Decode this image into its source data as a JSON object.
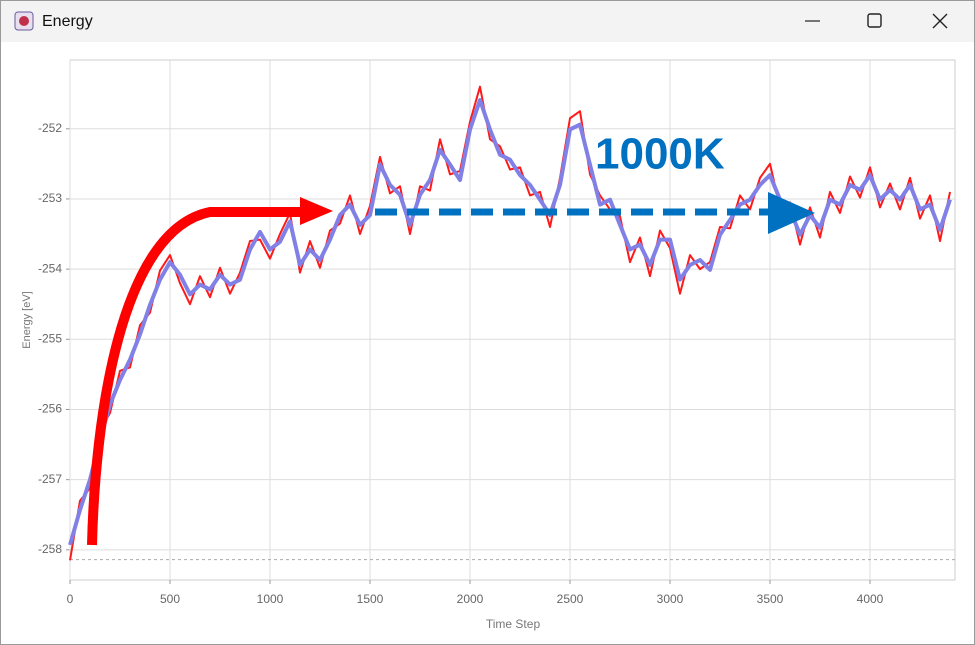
{
  "window": {
    "title": "Energy"
  },
  "chart_data": {
    "type": "line",
    "xlabel": "Time Step",
    "ylabel": "Energy [eV]",
    "annotation": "1000K",
    "x": [
      0,
      50,
      100,
      150,
      200,
      250,
      300,
      350,
      400,
      450,
      500,
      550,
      600,
      650,
      700,
      750,
      800,
      850,
      900,
      950,
      1000,
      1050,
      1100,
      1150,
      1200,
      1250,
      1300,
      1350,
      1400,
      1450,
      1500,
      1550,
      1600,
      1650,
      1700,
      1750,
      1800,
      1850,
      1900,
      1950,
      2000,
      2050,
      2100,
      2150,
      2200,
      2250,
      2300,
      2350,
      2400,
      2450,
      2500,
      2550,
      2600,
      2650,
      2700,
      2750,
      2800,
      2850,
      2900,
      2950,
      3000,
      3050,
      3100,
      3150,
      3200,
      3250,
      3300,
      3350,
      3400,
      3450,
      3500,
      3550,
      3600,
      3650,
      3700,
      3750,
      3800,
      3850,
      3900,
      3950,
      4000,
      4050,
      4100,
      4150,
      4200,
      4250,
      4300,
      4350,
      4400
    ],
    "series": [
      {
        "color": "#ff1a1a",
        "width": 2,
        "values": [
          -258.15,
          -257.3,
          -257.12,
          -256.3,
          -256.05,
          -255.45,
          -255.4,
          -254.8,
          -254.62,
          -254.02,
          -253.8,
          -254.2,
          -254.5,
          -254.1,
          -254.4,
          -253.98,
          -254.35,
          -254.05,
          -253.6,
          -253.58,
          -253.85,
          -253.5,
          -253.2,
          -254.05,
          -253.6,
          -253.98,
          -253.45,
          -253.35,
          -252.95,
          -253.5,
          -253.1,
          -252.4,
          -252.92,
          -252.82,
          -253.5,
          -252.82,
          -252.88,
          -252.15,
          -252.65,
          -252.6,
          -251.9,
          -251.4,
          -252.15,
          -252.25,
          -252.58,
          -252.55,
          -252.95,
          -252.9,
          -253.4,
          -252.7,
          -251.85,
          -251.75,
          -252.65,
          -252.95,
          -253.15,
          -253.25,
          -253.9,
          -253.55,
          -254.1,
          -253.45,
          -253.7,
          -254.35,
          -253.8,
          -254.0,
          -253.9,
          -253.4,
          -253.42,
          -252.95,
          -253.15,
          -252.7,
          -252.5,
          -253.12,
          -253.05,
          -253.65,
          -253.12,
          -253.55,
          -252.9,
          -253.2,
          -252.68,
          -252.98,
          -252.55,
          -253.12,
          -252.78,
          -253.15,
          -252.7,
          -253.28,
          -252.95,
          -253.6,
          -252.9
        ]
      },
      {
        "color": "#8080e6",
        "width": 4,
        "values": [
          -257.93,
          -257.43,
          -257.0,
          -256.43,
          -255.93,
          -255.58,
          -255.29,
          -254.93,
          -254.51,
          -254.15,
          -253.9,
          -254.08,
          -254.36,
          -254.22,
          -254.29,
          -254.08,
          -254.22,
          -254.15,
          -253.72,
          -253.47,
          -253.72,
          -253.61,
          -253.32,
          -253.94,
          -253.72,
          -253.87,
          -253.58,
          -253.23,
          -253.08,
          -253.37,
          -253.23,
          -252.51,
          -252.8,
          -252.94,
          -253.37,
          -252.94,
          -252.73,
          -252.3,
          -252.51,
          -252.73,
          -252.01,
          -251.59,
          -252.01,
          -252.37,
          -252.44,
          -252.66,
          -252.8,
          -253.01,
          -253.23,
          -252.8,
          -252.01,
          -251.94,
          -252.51,
          -253.08,
          -253.01,
          -253.37,
          -253.72,
          -253.65,
          -253.94,
          -253.58,
          -253.58,
          -254.15,
          -253.94,
          -253.87,
          -254.01,
          -253.51,
          -253.3,
          -253.08,
          -253.01,
          -252.8,
          -252.66,
          -253.01,
          -253.15,
          -253.51,
          -253.23,
          -253.41,
          -253.01,
          -253.08,
          -252.8,
          -252.87,
          -252.66,
          -253.01,
          -252.87,
          -253.01,
          -252.8,
          -253.15,
          -253.08,
          -253.44,
          -253.01
        ]
      }
    ],
    "xlim": [
      0,
      4425
    ],
    "ylim": [
      -258.43,
      -251.02
    ],
    "xticks": [
      0,
      500,
      1000,
      1500,
      2000,
      2500,
      3000,
      3500,
      4000
    ],
    "yticks": [
      -258,
      -257,
      -256,
      -255,
      -254,
      -253,
      -252
    ],
    "reference_line": -258.14,
    "grid": true
  }
}
